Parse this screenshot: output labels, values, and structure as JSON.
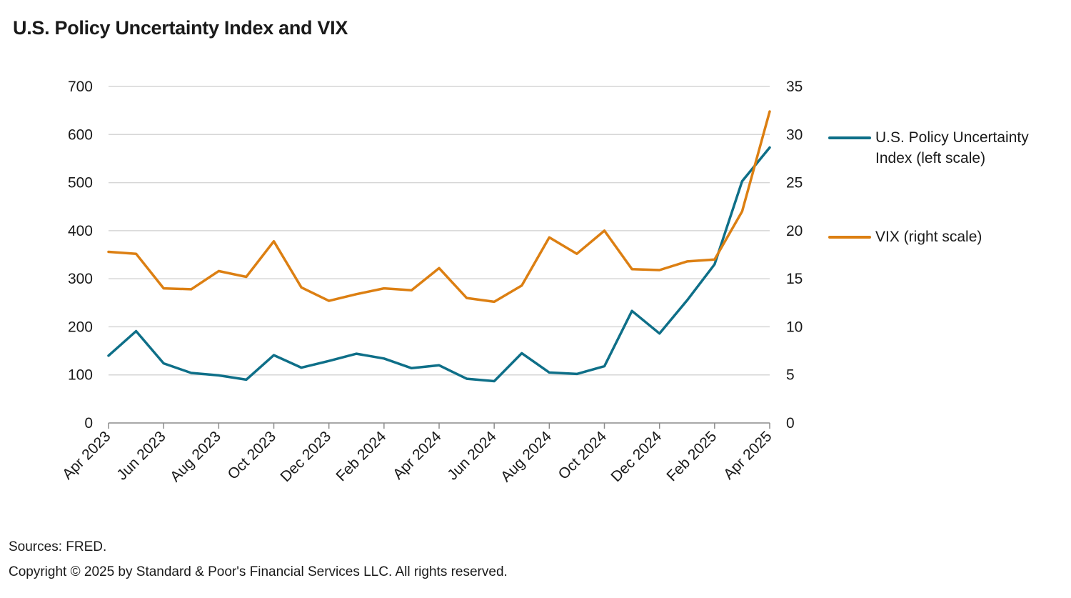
{
  "colors": {
    "epu": "#0e6f88",
    "vix": "#dc7f12",
    "grid": "#d6d6d6",
    "axis": "#8c8c8c"
  },
  "chart_data": {
    "type": "line",
    "title": "U.S. Policy Uncertainty Index and VIX",
    "x": [
      "Apr 2023",
      "May 2023",
      "Jun 2023",
      "Jul 2023",
      "Aug 2023",
      "Sep 2023",
      "Oct 2023",
      "Nov 2023",
      "Dec 2023",
      "Jan 2024",
      "Feb 2024",
      "Mar 2024",
      "Apr 2024",
      "May 2024",
      "Jun 2024",
      "Jul 2024",
      "Aug 2024",
      "Sep 2024",
      "Oct 2024",
      "Nov 2024",
      "Dec 2024",
      "Jan 2025",
      "Feb 2025",
      "Mar 2025",
      "Apr 2025"
    ],
    "x_tick_labels": [
      "Apr 2023",
      "Jun 2023",
      "Aug 2023",
      "Oct 2023",
      "Dec 2023",
      "Feb 2024",
      "Apr 2024",
      "Jun 2024",
      "Aug 2024",
      "Oct 2024",
      "Dec 2024",
      "Feb 2025",
      "Apr 2025"
    ],
    "y_left": {
      "min": 0,
      "max": 700,
      "ticks": [
        "0",
        "100",
        "200",
        "300",
        "400",
        "500",
        "600",
        "700"
      ]
    },
    "y_right": {
      "min": 0,
      "max": 35,
      "ticks": [
        "0",
        "5",
        "10",
        "15",
        "20",
        "25",
        "30",
        "35"
      ]
    },
    "series": [
      {
        "name": "U.S. Policy Uncertainty Index (left scale)",
        "axis": "left",
        "values": [
          140,
          191,
          124,
          104,
          99,
          90,
          141,
          115,
          129,
          144,
          134,
          114,
          120,
          92,
          87,
          145,
          105,
          102,
          118,
          233,
          186,
          255,
          330,
          503,
          573
        ]
      },
      {
        "name": "VIX (right scale)",
        "axis": "right",
        "values": [
          17.8,
          17.6,
          14.0,
          13.9,
          15.8,
          15.2,
          18.9,
          14.1,
          12.7,
          13.4,
          14.0,
          13.8,
          16.1,
          13.0,
          12.6,
          14.3,
          19.3,
          17.6,
          20.0,
          16.0,
          15.9,
          16.8,
          17.0,
          22.0,
          32.4
        ]
      }
    ],
    "legend_position": "right",
    "grid": true
  },
  "legend": {
    "epu_line1": "U.S. Policy Uncertainty",
    "epu_line2": "Index (left scale)",
    "vix": "VIX (right scale)"
  },
  "footer": {
    "sources": "Sources: FRED.",
    "copyright": "Copyright © 2025 by Standard & Poor's Financial Services LLC. All rights reserved."
  }
}
